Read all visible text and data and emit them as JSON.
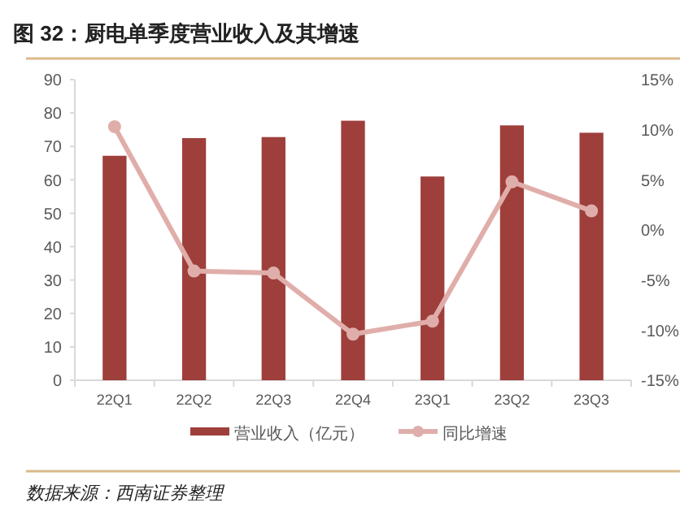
{
  "chart_data": {
    "type": "bar",
    "title": "图 32：厨电单季度营业收入及其增速",
    "categories": [
      "22Q1",
      "22Q2",
      "22Q3",
      "22Q4",
      "23Q1",
      "23Q2",
      "23Q3"
    ],
    "series": [
      {
        "name": "营业收入（亿元）",
        "color": "#9e3f3b",
        "values": [
          67.2,
          72.5,
          72.8,
          77.7,
          61.0,
          76.3,
          74.1
        ]
      },
      {
        "name": "同比增速",
        "type": "line",
        "axis": "y2",
        "color": "#e0aeaa",
        "marker": "circle",
        "values": [
          10.3,
          -4.1,
          -4.3,
          -10.4,
          -9.1,
          4.8,
          1.9
        ]
      }
    ],
    "ylim": [
      0,
      90
    ],
    "yticks": [
      0,
      10,
      20,
      30,
      40,
      50,
      60,
      70,
      80,
      90
    ],
    "y2lim": [
      -15,
      15
    ],
    "y2ticks": [
      {
        "value": -15,
        "label": "-15%"
      },
      {
        "value": -10,
        "label": "-10%"
      },
      {
        "value": -5,
        "label": "-5%"
      },
      {
        "value": 0,
        "label": "0%"
      },
      {
        "value": 5,
        "label": "5%"
      },
      {
        "value": 10,
        "label": "10%"
      },
      {
        "value": 15,
        "label": "15%"
      }
    ],
    "legend": "bottom",
    "annotations": [
      "数据来源：西南证券整理"
    ]
  }
}
